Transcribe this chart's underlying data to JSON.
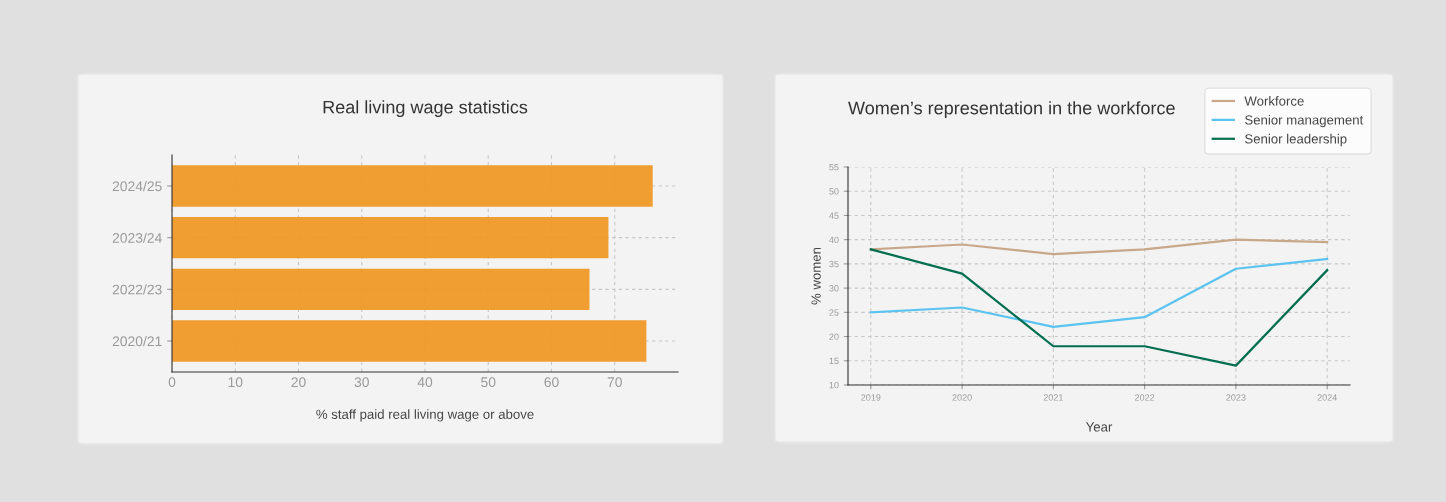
{
  "chart_data": [
    {
      "type": "bar",
      "orientation": "horizontal",
      "title": "Real living wage statistics",
      "xlabel": "% staff paid real living wage or above",
      "categories": [
        "2024/25",
        "2023/24",
        "2022/23",
        "2020/21"
      ],
      "values": [
        76,
        69,
        66,
        75
      ],
      "color": "#ef9826",
      "xlim": [
        0,
        80
      ],
      "xticks": [
        0,
        10,
        20,
        30,
        40,
        50,
        60,
        70
      ],
      "grid": true,
      "legend": false
    },
    {
      "type": "line",
      "title": "Women’s representation in the workforce",
      "xlabel": "Year",
      "ylabel": "% women",
      "x": [
        2019,
        2020,
        2021,
        2022,
        2023,
        2024
      ],
      "series": [
        {
          "name": "Workforce",
          "color": "#c9a88a",
          "values": [
            38,
            39,
            37,
            38,
            40,
            39.5
          ]
        },
        {
          "name": "Senior management",
          "color": "#5bc3f0",
          "values": [
            25,
            26,
            22,
            24,
            34,
            36
          ]
        },
        {
          "name": "Senior leadership",
          "color": "#006e4f",
          "values": [
            38,
            33,
            18,
            18,
            14,
            33.7
          ]
        }
      ],
      "xlim": [
        2018.75,
        2024.25
      ],
      "xticks": [
        2019,
        2020,
        2021,
        2022,
        2023,
        2024
      ],
      "ylim": [
        10,
        55
      ],
      "yticks": [
        10,
        15,
        20,
        25,
        30,
        35,
        40,
        45,
        50,
        55
      ],
      "grid": true,
      "legend": "top right",
      "marker": "none",
      "line_style": "solid"
    }
  ]
}
